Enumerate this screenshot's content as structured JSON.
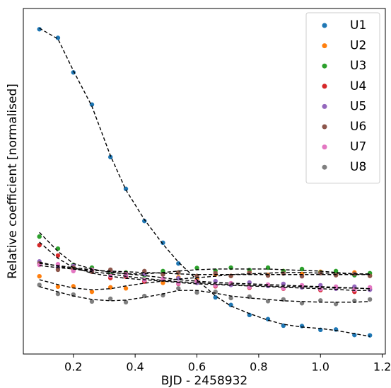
{
  "chart_data": {
    "type": "scatter",
    "xlabel": "BJD - 2458932",
    "ylabel": "Relative coefficient [normalised]",
    "xlim": [
      0.038,
      1.21
    ],
    "ylim": [
      0,
      1
    ],
    "xticks": [
      0.2,
      0.4,
      0.6,
      0.8,
      {
        "value": 1,
        "label": "1.0"
      },
      1.2
    ],
    "legend": "upper right",
    "fit_color": "#000000",
    "x": [
      0.09,
      0.15,
      0.2,
      0.26,
      0.32,
      0.37,
      0.43,
      0.49,
      0.54,
      0.6,
      0.66,
      0.71,
      0.77,
      0.83,
      0.88,
      0.94,
      1.0,
      1.05,
      1.11,
      1.16
    ],
    "series": [
      {
        "name": "U1",
        "color": "#1f77b4",
        "values": [
          0.94,
          0.915,
          0.815,
          0.722,
          0.57,
          0.478,
          0.385,
          0.322,
          0.262,
          0.218,
          0.164,
          0.142,
          0.113,
          0.101,
          0.082,
          0.081,
          0.07,
          0.071,
          0.055,
          0.054
        ],
        "fit": [
          0.943,
          0.912,
          0.82,
          0.717,
          0.574,
          0.475,
          0.389,
          0.318,
          0.266,
          0.215,
          0.168,
          0.139,
          0.117,
          0.098,
          0.086,
          0.078,
          0.074,
          0.068,
          0.059,
          0.051
        ]
      },
      {
        "name": "U2",
        "color": "#ff7f0e",
        "values": [
          0.225,
          0.195,
          0.196,
          0.18,
          0.193,
          0.19,
          0.21,
          0.206,
          0.222,
          0.215,
          0.23,
          0.226,
          0.238,
          0.229,
          0.24,
          0.232,
          0.238,
          0.229,
          0.236,
          0.228
        ],
        "fit": [
          0.215,
          0.201,
          0.191,
          0.186,
          0.189,
          0.197,
          0.205,
          0.211,
          0.217,
          0.221,
          0.225,
          0.23,
          0.232,
          0.234,
          0.236,
          0.236,
          0.234,
          0.234,
          0.232,
          0.232
        ]
      },
      {
        "name": "U3",
        "color": "#2ca02c",
        "values": [
          0.34,
          0.305,
          0.258,
          0.25,
          0.231,
          0.236,
          0.228,
          0.24,
          0.236,
          0.249,
          0.241,
          0.25,
          0.243,
          0.25,
          0.24,
          0.246,
          0.236,
          0.24,
          0.228,
          0.234
        ],
        "fit": [
          0.352,
          0.297,
          0.262,
          0.246,
          0.236,
          0.232,
          0.232,
          0.236,
          0.24,
          0.244,
          0.246,
          0.246,
          0.246,
          0.246,
          0.244,
          0.242,
          0.24,
          0.236,
          0.232,
          0.23
        ]
      },
      {
        "name": "U4",
        "color": "#d62728",
        "values": [
          0.315,
          0.285,
          0.244,
          0.24,
          0.22,
          0.224,
          0.21,
          0.216,
          0.203,
          0.208,
          0.196,
          0.204,
          0.192,
          0.2,
          0.189,
          0.196,
          0.185,
          0.192,
          0.18,
          0.188
        ],
        "fit": [
          0.324,
          0.277,
          0.25,
          0.234,
          0.225,
          0.219,
          0.215,
          0.211,
          0.207,
          0.203,
          0.201,
          0.199,
          0.197,
          0.195,
          0.193,
          0.191,
          0.189,
          0.187,
          0.184,
          0.184
        ]
      },
      {
        "name": "U5",
        "color": "#9467bd",
        "values": [
          0.268,
          0.25,
          0.255,
          0.24,
          0.242,
          0.228,
          0.231,
          0.217,
          0.219,
          0.206,
          0.211,
          0.2,
          0.207,
          0.197,
          0.203,
          0.193,
          0.199,
          0.189,
          0.195,
          0.186
        ],
        "fit": [
          0.262,
          0.256,
          0.25,
          0.244,
          0.238,
          0.232,
          0.227,
          0.221,
          0.215,
          0.211,
          0.207,
          0.205,
          0.203,
          0.201,
          0.199,
          0.197,
          0.195,
          0.193,
          0.191,
          0.189
        ]
      },
      {
        "name": "U6",
        "color": "#8c564b",
        "values": [
          0.262,
          0.244,
          0.25,
          0.238,
          0.244,
          0.234,
          0.24,
          0.23,
          0.236,
          0.226,
          0.234,
          0.226,
          0.235,
          0.227,
          0.233,
          0.225,
          0.234,
          0.228,
          0.232,
          0.226
        ],
        "fit": [
          0.256,
          0.25,
          0.246,
          0.242,
          0.24,
          0.238,
          0.236,
          0.234,
          0.232,
          0.23,
          0.23,
          0.23,
          0.23,
          0.23,
          0.23,
          0.23,
          0.23,
          0.23,
          0.23,
          0.23
        ]
      },
      {
        "name": "U7",
        "color": "#e377c2",
        "values": [
          0.258,
          0.26,
          0.24,
          0.244,
          0.226,
          0.23,
          0.214,
          0.218,
          0.204,
          0.211,
          0.198,
          0.205,
          0.194,
          0.201,
          0.19,
          0.199,
          0.188,
          0.195,
          0.186,
          0.193
        ],
        "fit": [
          0.266,
          0.254,
          0.246,
          0.238,
          0.232,
          0.225,
          0.219,
          0.213,
          0.209,
          0.207,
          0.203,
          0.201,
          0.199,
          0.197,
          0.195,
          0.195,
          0.193,
          0.191,
          0.191,
          0.189
        ]
      },
      {
        "name": "U8",
        "color": "#7f7f7f",
        "values": [
          0.2,
          0.174,
          0.172,
          0.152,
          0.16,
          0.15,
          0.168,
          0.17,
          0.19,
          0.178,
          0.18,
          0.162,
          0.166,
          0.153,
          0.158,
          0.147,
          0.155,
          0.145,
          0.154,
          0.158
        ],
        "fit": [
          0.195,
          0.18,
          0.168,
          0.158,
          0.154,
          0.156,
          0.164,
          0.174,
          0.184,
          0.184,
          0.176,
          0.168,
          0.162,
          0.158,
          0.154,
          0.152,
          0.15,
          0.15,
          0.15,
          0.152
        ]
      }
    ]
  }
}
